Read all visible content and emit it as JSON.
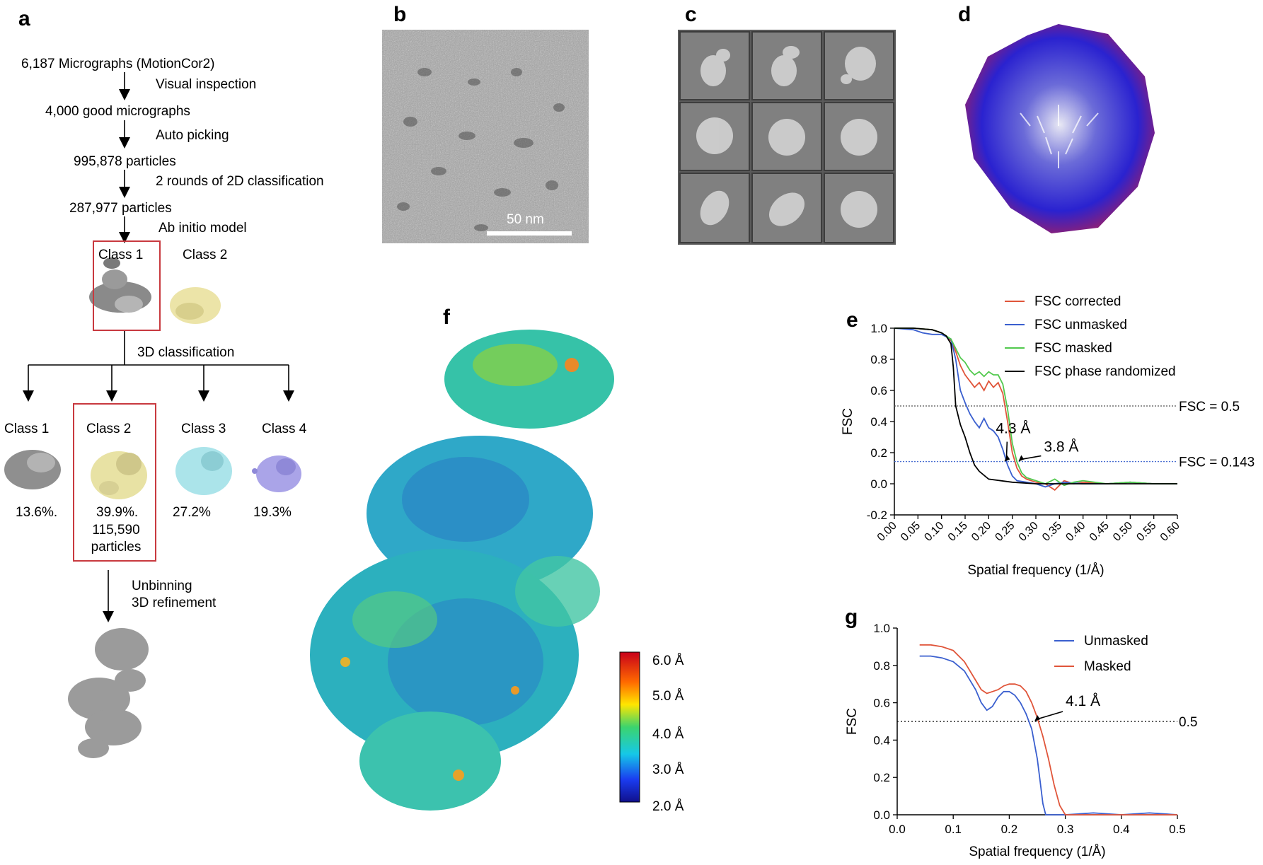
{
  "panel_labels": {
    "a": "a",
    "b": "b",
    "c": "c",
    "d": "d",
    "e": "e",
    "f": "f",
    "g": "g"
  },
  "flow": {
    "steps": [
      "6,187 Micrographs (MotionCor2)",
      "4,000 good micrographs",
      "995,878 particles",
      "287,977 particles"
    ],
    "actions": [
      "Visual inspection",
      "Auto picking",
      "2 rounds of 2D classification",
      "Ab initio model"
    ],
    "ab_initio_classes": [
      "Class 1",
      "Class 2"
    ],
    "classification_label": "3D classification",
    "classes_3d": [
      {
        "label": "Class 1",
        "percent": "13.6%.",
        "extra": "",
        "color": "#8c8c8c"
      },
      {
        "label": "Class 2",
        "percent": "39.9%.",
        "extra": "115,590\nparticles",
        "color": "#e6e0a0"
      },
      {
        "label": "Class 3",
        "percent": "27.2%",
        "extra": "",
        "color": "#a9e3ea"
      },
      {
        "label": "Class 4",
        "percent": "19.3%",
        "extra": "",
        "color": "#a8a3e6"
      }
    ],
    "refine_line1": "Unbinning",
    "refine_line2": "3D refinement"
  },
  "micrograph": {
    "scale_bar": "50 nm"
  },
  "colorbar": {
    "ticks": [
      "6.0 Å",
      "5.0 Å",
      "4.0 Å",
      "3.0 Å",
      "2.0 Å"
    ]
  },
  "chart_data": [
    {
      "panel": "e",
      "type": "line",
      "xlabel": "Spatial frequency (1/Å)",
      "ylabel": "FSC",
      "xlim": [
        0,
        0.6
      ],
      "ylim": [
        -0.2,
        1.0
      ],
      "xticks": [
        "0.00",
        "0.05",
        "0.10",
        "0.15",
        "0.20",
        "0.25",
        "0.30",
        "0.35",
        "0.40",
        "0.45",
        "0.50",
        "0.55",
        "0.60"
      ],
      "yticks": [
        "-0.2",
        "0.0",
        "0.2",
        "0.4",
        "0.6",
        "0.8",
        "1.0"
      ],
      "legend_position": "top-right",
      "thresholds": [
        {
          "y": 0.5,
          "label": "FSC = 0.5",
          "color": "#555555"
        },
        {
          "y": 0.143,
          "label": "FSC = 0.143",
          "color": "#4a6fd1"
        }
      ],
      "annotations": [
        {
          "text": "4.3 Å",
          "x": 0.233,
          "y": 0.143
        },
        {
          "text": "3.8 Å",
          "x": 0.263,
          "y": 0.143
        }
      ],
      "series": [
        {
          "name": "FSC corrected",
          "color": "#e0553a",
          "x": [
            0,
            0.04,
            0.08,
            0.1,
            0.12,
            0.13,
            0.14,
            0.15,
            0.16,
            0.17,
            0.18,
            0.19,
            0.2,
            0.21,
            0.22,
            0.23,
            0.24,
            0.25,
            0.26,
            0.27,
            0.28,
            0.3,
            0.32,
            0.34,
            0.36,
            0.38,
            0.4,
            0.45,
            0.5,
            0.55,
            0.6
          ],
          "y": [
            1.0,
            1.0,
            0.99,
            0.97,
            0.92,
            0.85,
            0.76,
            0.7,
            0.66,
            0.62,
            0.65,
            0.6,
            0.66,
            0.62,
            0.65,
            0.58,
            0.4,
            0.2,
            0.1,
            0.05,
            0.03,
            0.01,
            0.0,
            -0.04,
            0.02,
            0.0,
            0.01,
            0.0,
            0.01,
            0.0,
            0.0
          ]
        },
        {
          "name": "FSC unmasked",
          "color": "#3a5fcf",
          "x": [
            0,
            0.04,
            0.06,
            0.08,
            0.1,
            0.12,
            0.13,
            0.14,
            0.15,
            0.16,
            0.17,
            0.18,
            0.19,
            0.2,
            0.21,
            0.22,
            0.23,
            0.24,
            0.25,
            0.26,
            0.28,
            0.3,
            0.32,
            0.34,
            0.36,
            0.4,
            0.45,
            0.5,
            0.55,
            0.6
          ],
          "y": [
            1.0,
            0.99,
            0.97,
            0.96,
            0.96,
            0.93,
            0.8,
            0.6,
            0.52,
            0.45,
            0.4,
            0.36,
            0.42,
            0.36,
            0.34,
            0.3,
            0.22,
            0.12,
            0.05,
            0.02,
            0.01,
            0.0,
            -0.02,
            0.0,
            0.01,
            0.0,
            0.0,
            0.01,
            0.0,
            0.0
          ]
        },
        {
          "name": "FSC masked",
          "color": "#52c94e",
          "x": [
            0,
            0.04,
            0.08,
            0.1,
            0.12,
            0.13,
            0.14,
            0.15,
            0.16,
            0.17,
            0.18,
            0.19,
            0.2,
            0.21,
            0.22,
            0.23,
            0.24,
            0.25,
            0.26,
            0.27,
            0.28,
            0.3,
            0.32,
            0.34,
            0.36,
            0.38,
            0.4,
            0.45,
            0.5,
            0.55,
            0.6
          ],
          "y": [
            1.0,
            1.0,
            0.99,
            0.97,
            0.93,
            0.87,
            0.81,
            0.78,
            0.73,
            0.7,
            0.72,
            0.69,
            0.72,
            0.7,
            0.7,
            0.64,
            0.48,
            0.26,
            0.14,
            0.07,
            0.04,
            0.02,
            0.0,
            0.03,
            -0.01,
            0.01,
            0.02,
            0.0,
            0.01,
            0.0,
            0.0
          ]
        },
        {
          "name": "FSC phase randomized",
          "color": "#000000",
          "x": [
            0,
            0.04,
            0.08,
            0.1,
            0.11,
            0.12,
            0.125,
            0.13,
            0.14,
            0.15,
            0.16,
            0.17,
            0.18,
            0.2,
            0.25,
            0.3,
            0.4,
            0.5,
            0.6
          ],
          "y": [
            1.0,
            1.0,
            0.99,
            0.97,
            0.95,
            0.9,
            0.75,
            0.5,
            0.38,
            0.3,
            0.2,
            0.12,
            0.08,
            0.03,
            0.01,
            0.0,
            0.0,
            0.0,
            0.0
          ]
        }
      ]
    },
    {
      "panel": "g",
      "type": "line",
      "xlabel": "Spatial frequency (1/Å)",
      "ylabel": "FSC",
      "xlim": [
        0,
        0.5
      ],
      "ylim": [
        0,
        1.0
      ],
      "xticks": [
        "0.0",
        "0.1",
        "0.2",
        "0.3",
        "0.4",
        "0.5"
      ],
      "yticks": [
        "0.0",
        "0.2",
        "0.4",
        "0.6",
        "0.8",
        "1.0"
      ],
      "legend_position": "top-right",
      "thresholds": [
        {
          "y": 0.5,
          "label": "0.5",
          "color": "#000000"
        }
      ],
      "annotations": [
        {
          "text": "4.1 Å",
          "x": 0.245,
          "y": 0.5
        }
      ],
      "series": [
        {
          "name": "Unmasked",
          "color": "#3a5fcf",
          "x": [
            0.04,
            0.06,
            0.08,
            0.1,
            0.12,
            0.14,
            0.15,
            0.16,
            0.17,
            0.18,
            0.19,
            0.2,
            0.21,
            0.22,
            0.23,
            0.24,
            0.25,
            0.255,
            0.26,
            0.265,
            0.3,
            0.35,
            0.4,
            0.45,
            0.5
          ],
          "y": [
            0.85,
            0.85,
            0.84,
            0.82,
            0.77,
            0.67,
            0.6,
            0.56,
            0.58,
            0.63,
            0.66,
            0.66,
            0.64,
            0.6,
            0.54,
            0.46,
            0.3,
            0.18,
            0.06,
            0.0,
            0.0,
            0.01,
            0.0,
            0.01,
            0.0
          ]
        },
        {
          "name": "Masked",
          "color": "#e0553a",
          "x": [
            0.04,
            0.06,
            0.08,
            0.1,
            0.12,
            0.14,
            0.15,
            0.16,
            0.17,
            0.18,
            0.19,
            0.2,
            0.21,
            0.22,
            0.23,
            0.24,
            0.25,
            0.26,
            0.27,
            0.28,
            0.29,
            0.3,
            0.35,
            0.4,
            0.5
          ],
          "y": [
            0.91,
            0.91,
            0.9,
            0.88,
            0.82,
            0.72,
            0.67,
            0.65,
            0.66,
            0.67,
            0.69,
            0.7,
            0.7,
            0.69,
            0.66,
            0.6,
            0.52,
            0.42,
            0.3,
            0.16,
            0.05,
            0.0,
            0.0,
            0.0,
            0.0
          ]
        }
      ]
    }
  ]
}
